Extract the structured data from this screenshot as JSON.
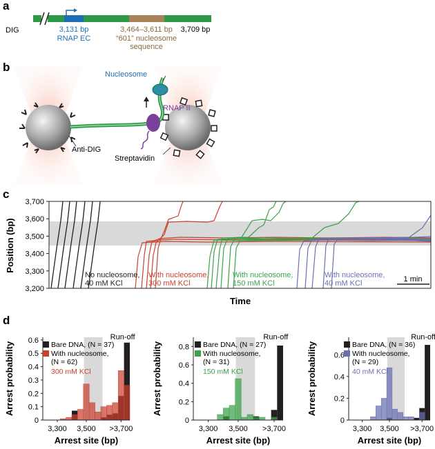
{
  "panel_labels": {
    "a": "a",
    "b": "b",
    "c": "c",
    "d": "d"
  },
  "panel_a": {
    "dig_label": "DIG",
    "rnap_pos": "3,131 bp",
    "rnap_label": "RNAP EC",
    "nuc_pos": "3,464–3,611 bp",
    "nuc_label_1": "“601” nucleosome",
    "nuc_label_2": "sequence",
    "end_pos": "3,709 bp"
  },
  "panel_b": {
    "nucleosome": "Nucleosome",
    "rnap": "RNAP II",
    "anti_dig": "Anti-DIG",
    "streptavidin": "Streptavidin"
  },
  "panel_c": {
    "ylabel": "Position (bp)",
    "xlabel": "Time",
    "yticks": [
      "3,700",
      "3,600",
      "3,500",
      "3,400",
      "3,300",
      "3,200"
    ],
    "scalebar": "1 min",
    "gray_band": [
      3464,
      3611
    ],
    "groups": [
      {
        "line1": "No nucleosome,",
        "line2": "40 mM KCl",
        "color": "#231f20"
      },
      {
        "line1": "With nucleosome,",
        "line2": "300 mM KCl",
        "color": "#c8412f"
      },
      {
        "line1": "With nucleosome,",
        "line2": "150 mM KCl",
        "color": "#3aa24a"
      },
      {
        "line1": "With nucleosome,",
        "line2": "40 mM KCl",
        "color": "#6a6fb0"
      }
    ]
  },
  "colors": {
    "red": "#c8412f",
    "green": "#3aa24a",
    "blue": "#6a6fb0",
    "black": "#231f20",
    "gray": "#d9d9d9",
    "dna_green": "#2e9a47",
    "rnap_blue": "#1f6fb5",
    "nuc_brown": "#a8835a",
    "rnap_purple": "#7b3f9c",
    "nuc_teal": "#2a8fa0"
  },
  "chart_data": [
    {
      "type": "bar",
      "ylabel": "Arrest probability",
      "xlabel": "Arrest site (bp)",
      "xticks": [
        "3,300",
        "3,500",
        ">3,700"
      ],
      "yticks": [
        "0",
        "0.1",
        "0.2",
        "0.3",
        "0.4",
        "0.5",
        "0.6"
      ],
      "ylim": [
        0,
        0.62
      ],
      "runoff": "Run-off",
      "legend": [
        {
          "label": "Bare DNA, (N = 37)",
          "color": "#231f20"
        },
        {
          "label": "With nucleosome,",
          "label2": "(N = 62)",
          "color": "#c8412f"
        }
      ],
      "condition": "300 mM KCl",
      "series": [
        {
          "name": "Bare DNA",
          "values": [
            0,
            0,
            0,
            0,
            0,
            0.07,
            0,
            0,
            0,
            0,
            0.02,
            0.04,
            0.05,
            0.18,
            0.58
          ]
        },
        {
          "name": "With nucleosome",
          "values": [
            0,
            0,
            0,
            0.01,
            0.02,
            0.04,
            0.08,
            0.27,
            0.13,
            0.06,
            0.1,
            0.11,
            0.13,
            0.37,
            0.26
          ]
        }
      ]
    },
    {
      "type": "bar",
      "ylabel": "Arrest probability",
      "xlabel": "Arrest site (bp)",
      "xticks": [
        "3,300",
        "3,500",
        ">3,700"
      ],
      "yticks": [
        "0",
        "0.2",
        "0.4",
        "0.6",
        "0.8"
      ],
      "ylim": [
        0,
        0.9
      ],
      "runoff": "Run-off",
      "legend": [
        {
          "label": "Bare DNA, (N = 27)",
          "color": "#231f20"
        },
        {
          "label": "With nucleosome,",
          "label2": "(N = 31)",
          "color": "#3aa24a"
        }
      ],
      "condition": "150 mM KCl",
      "series": [
        {
          "name": "Bare DNA",
          "values": [
            0,
            0,
            0,
            0,
            0,
            0.04,
            0,
            0,
            0,
            0,
            0.04,
            0,
            0,
            0.11,
            0.81
          ]
        },
        {
          "name": "With nucleosome",
          "values": [
            0,
            0,
            0,
            0,
            0.06,
            0.13,
            0.16,
            0.45,
            0.03,
            0.06,
            0.03,
            0.03,
            0,
            0.03,
            0
          ]
        }
      ]
    },
    {
      "type": "bar",
      "ylabel": "Arrest probability",
      "xlabel": "Arrest site (bp)",
      "xticks": [
        "3,300",
        "3,500",
        ">3,700"
      ],
      "yticks": [
        "0",
        "0.2",
        "0.4",
        "0.6"
      ],
      "ylim": [
        0,
        0.76
      ],
      "runoff": "Run-off",
      "legend": [
        {
          "label": "Bare DNA, (N = 36)",
          "color": "#231f20"
        },
        {
          "label": "With nucleosome,",
          "label2": "(N = 29)",
          "color": "#6a6fb0"
        }
      ],
      "condition": "40 mM KCl",
      "series": [
        {
          "name": "Bare DNA",
          "values": [
            0,
            0,
            0,
            0,
            0,
            0,
            0,
            0.02,
            0,
            0,
            0,
            0,
            0.02,
            0.11,
            0.69
          ]
        },
        {
          "name": "With nucleosome",
          "values": [
            0,
            0,
            0,
            0,
            0.03,
            0.13,
            0.2,
            0.48,
            0.1,
            0.07,
            0.03,
            0.03,
            0,
            0.07,
            0
          ]
        }
      ]
    }
  ]
}
